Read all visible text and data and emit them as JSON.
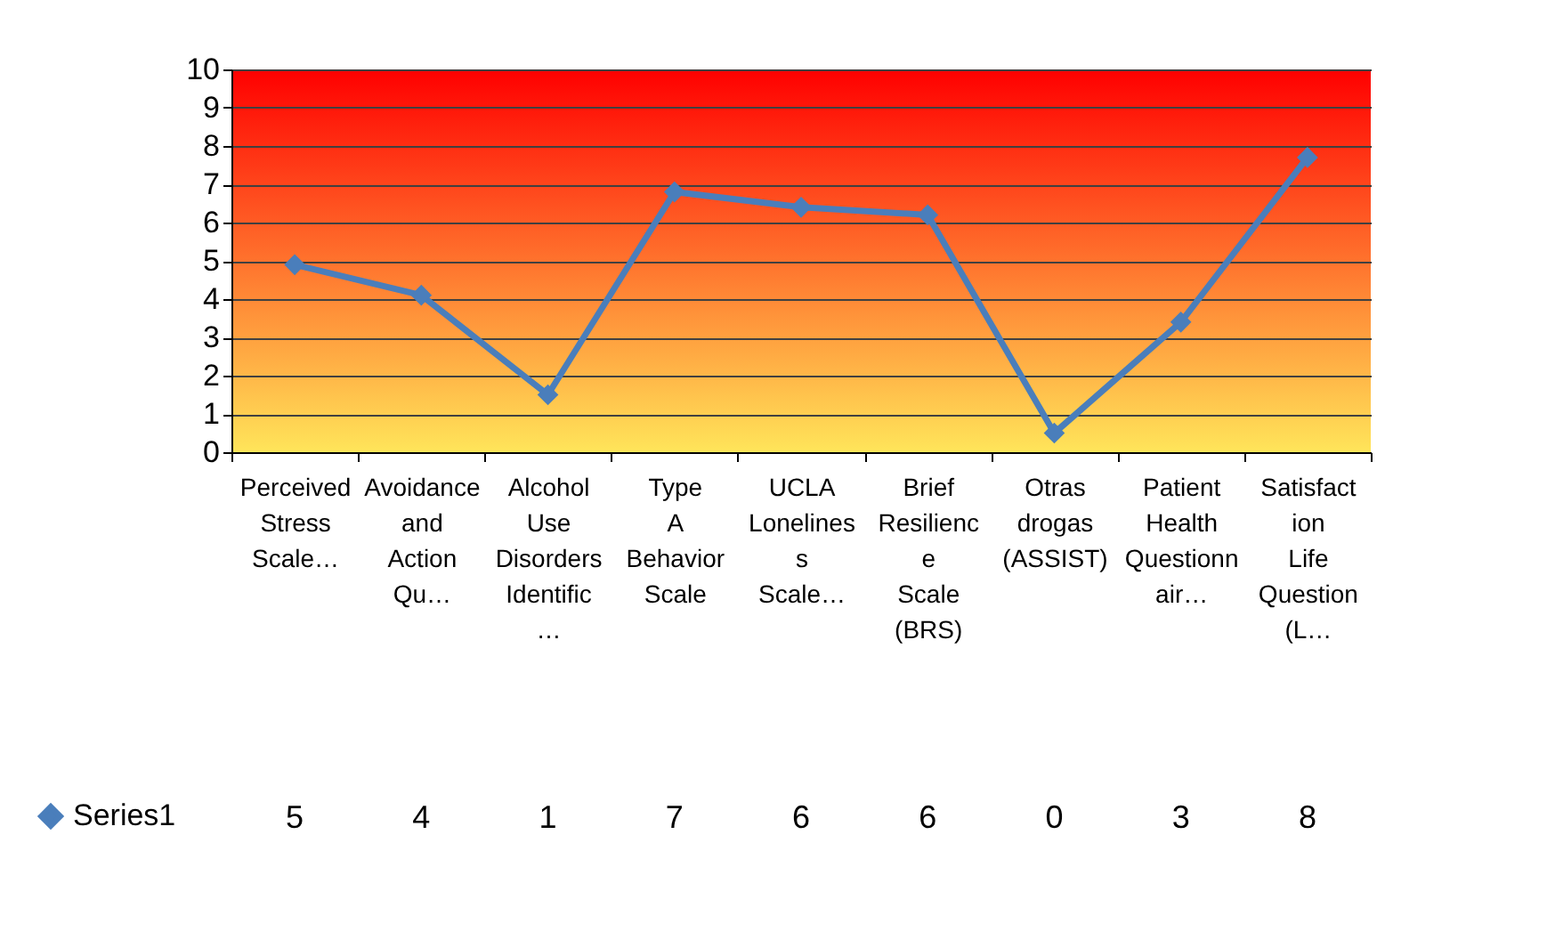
{
  "chart_data": {
    "type": "line",
    "categories": [
      "Perceived Stress Scale…",
      "Avoidance and Action Qu…",
      "Alcohol Use Disorders Identific…",
      "Type A Behavior Scale",
      "UCLA Loneliness Scale…",
      "Brief Resilience Scale (BRS)",
      "Otras drogas (ASSIST)",
      "Patient Health Questionnair…",
      "Satisfaction Life Question (L…"
    ],
    "series": [
      {
        "name": "Series1",
        "color": "#4a7ebb",
        "values": [
          4.9,
          4.1,
          1.5,
          6.8,
          6.4,
          6.2,
          0.5,
          3.4,
          7.7
        ],
        "value_labels": [
          "5",
          "4",
          "1",
          "7",
          "6",
          "6",
          "0",
          "3",
          "8"
        ]
      }
    ],
    "ylim": [
      0,
      10
    ],
    "yticks": [
      0,
      1,
      2,
      3,
      4,
      5,
      6,
      7,
      8,
      9,
      10
    ],
    "grid": "y",
    "legend": "bottom left",
    "marker": "diamond",
    "line_style": "solid"
  }
}
